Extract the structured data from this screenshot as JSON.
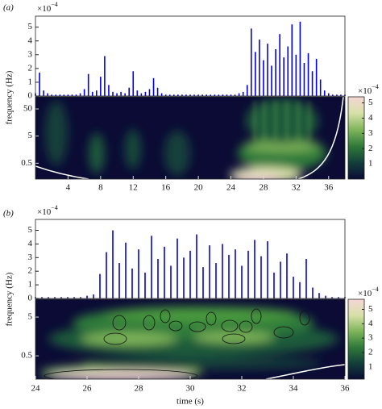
{
  "chart_data": [
    {
      "type": "stem",
      "panel_label": "(a)",
      "multiplier": {
        "base": "×10",
        "exponent": "−4"
      },
      "ylabel": "frequency (Hz)",
      "color": "#0000ee",
      "xlim": [
        0,
        38
      ],
      "xticks": [
        4,
        8,
        12,
        16,
        20,
        24,
        28,
        32,
        36
      ],
      "ylim": [
        0,
        5.8
      ],
      "yticks": [
        0,
        1,
        2,
        3,
        4,
        5
      ],
      "x": [
        0,
        0.5,
        1,
        1.5,
        2,
        2.5,
        3,
        3.5,
        4,
        4.5,
        5,
        5.5,
        6,
        6.5,
        7,
        7.5,
        8,
        8.5,
        9,
        9.5,
        10,
        10.5,
        11,
        11.5,
        12,
        12.5,
        13,
        13.5,
        14,
        14.5,
        15,
        15.5,
        16,
        16.5,
        17,
        17.5,
        18,
        18.5,
        19,
        19.5,
        20,
        20.5,
        21,
        21.5,
        22,
        22.5,
        23,
        23.5,
        24,
        24.5,
        25,
        25.5,
        26,
        26.5,
        27,
        27.5,
        28,
        28.5,
        29,
        29.5,
        30,
        30.5,
        31,
        31.5,
        32,
        32.5,
        33,
        33.5,
        34,
        34.5,
        35,
        35.5,
        36,
        36.5,
        37,
        37.5,
        38
      ],
      "values": [
        0.2,
        1.7,
        0.4,
        0.2,
        0.1,
        0.1,
        0.1,
        0.1,
        0.1,
        0.1,
        0.1,
        0.2,
        0.5,
        1.6,
        0.3,
        0.4,
        1.4,
        2.9,
        0.8,
        0.3,
        0.2,
        0.3,
        0.2,
        0.6,
        1.8,
        0.4,
        0.2,
        0.3,
        0.5,
        1.3,
        0.6,
        0.2,
        0.1,
        0.1,
        0.1,
        0.1,
        0.1,
        0.1,
        0.1,
        0.1,
        0.1,
        0.1,
        0.1,
        0.1,
        0.1,
        0.1,
        0.1,
        0.1,
        0.1,
        0.1,
        0.2,
        0.3,
        0.8,
        4.9,
        3.2,
        4.1,
        2.6,
        3.8,
        2.2,
        3.4,
        4.5,
        2.8,
        3.6,
        5.2,
        3.0,
        5.4,
        2.4,
        3.1,
        1.8,
        2.7,
        1.2,
        0.4,
        0.2,
        0.1,
        0.1,
        0.1,
        0.1
      ],
      "scalogram": {
        "log_scale": true,
        "ylim": [
          0.13,
          140
        ],
        "yticks": [
          0.5,
          5,
          50
        ],
        "colormap": [
          "#0b0b35",
          "#123f3a",
          "#2f7a3a",
          "#7fb55a",
          "#d8e0a8",
          "#f4d6d6"
        ],
        "clim": [
          0,
          5.4
        ],
        "cticks": [
          1,
          2,
          3,
          4,
          5
        ],
        "multiplier": {
          "base": "×10",
          "exponent": "−4"
        }
      }
    },
    {
      "type": "stem",
      "panel_label": "(b)",
      "multiplier": {
        "base": "×10",
        "exponent": "−4"
      },
      "ylabel": "frequency (Hz)",
      "xlabel": "time (s)",
      "color": "#0000ee",
      "xlim": [
        24,
        36
      ],
      "xticks": [
        24,
        26,
        28,
        30,
        32,
        34,
        36
      ],
      "ylim": [
        0,
        5.8
      ],
      "yticks": [
        0,
        1,
        2,
        3,
        4,
        5
      ],
      "x": [
        24,
        24.25,
        24.5,
        24.75,
        25,
        25.25,
        25.5,
        25.75,
        26,
        26.25,
        26.5,
        26.75,
        27,
        27.25,
        27.5,
        27.75,
        28,
        28.25,
        28.5,
        28.75,
        29,
        29.25,
        29.5,
        29.75,
        30,
        30.25,
        30.5,
        30.75,
        31,
        31.25,
        31.5,
        31.75,
        32,
        32.25,
        32.5,
        32.75,
        33,
        33.25,
        33.5,
        33.75,
        34,
        34.25,
        34.5,
        34.75,
        35,
        35.25,
        35.5,
        35.75,
        36
      ],
      "values": [
        0.1,
        0.1,
        0.1,
        0.1,
        0.1,
        0.1,
        0.1,
        0.1,
        0.2,
        0.3,
        1.8,
        3.4,
        5.0,
        2.6,
        4.1,
        2.2,
        3.6,
        1.9,
        4.6,
        2.9,
        3.8,
        2.4,
        4.4,
        3.0,
        3.5,
        4.7,
        2.3,
        3.9,
        2.6,
        4.0,
        3.2,
        3.6,
        2.4,
        3.5,
        4.3,
        3.1,
        4.2,
        1.9,
        2.7,
        3.3,
        1.6,
        1.2,
        2.9,
        0.8,
        0.4,
        0.2,
        0.1,
        0.1,
        0.1
      ],
      "scalogram": {
        "log_scale": true,
        "ylim": [
          0.125,
          14.4
        ],
        "yticks": [
          0.5,
          5
        ],
        "colormap": [
          "#0b0b35",
          "#123f3a",
          "#2f7a3a",
          "#7fb55a",
          "#d8e0a8",
          "#f4d6d6"
        ],
        "clim": [
          0.15,
          5.7
        ],
        "cticks": [
          1,
          2,
          3,
          4,
          5
        ],
        "multiplier": {
          "base": "×10",
          "exponent": "−4"
        }
      }
    }
  ]
}
